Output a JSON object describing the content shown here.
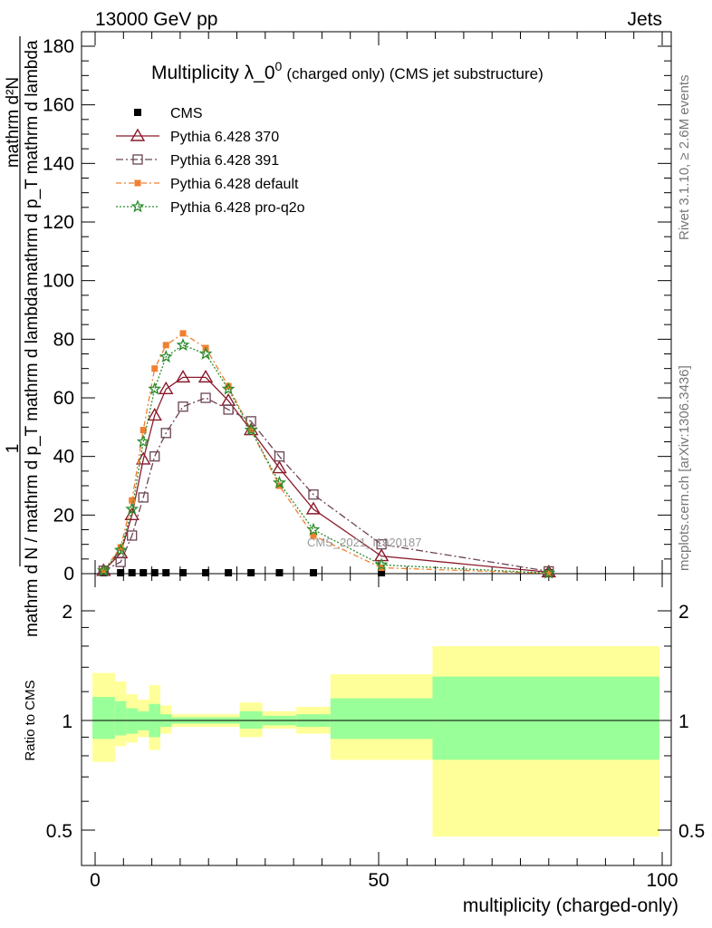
{
  "header": {
    "left": "13000 GeV pp",
    "right": "Jets"
  },
  "chart_data": {
    "type": "line",
    "title": "Multiplicity λ_0",
    "title_sup": "0",
    "title_small": "(charged only) (CMS jet substructure)",
    "xlabel": "multiplicity (charged-only)",
    "ylabel_top": "1",
    "ylabel_bottom": "mathrm d N / mathrm d p_T mathrm d lambda",
    "ylabel_numerator": "mathrm d²N",
    "ylabel_denominator": "mathrm d p_T mathrm d lambda",
    "xlim": [
      -2,
      100
    ],
    "ylim": [
      0,
      185
    ],
    "x_ticks": [
      0,
      50,
      100
    ],
    "y_ticks": [
      0,
      20,
      40,
      60,
      80,
      100,
      120,
      140,
      160,
      180
    ],
    "legend_position": "top-left",
    "grid": false,
    "series": [
      {
        "name": "CMS",
        "color": "#000000",
        "marker": "square-filled",
        "x": [
          1.5,
          4.5,
          6.5,
          8.5,
          10.5,
          12.5,
          15.5,
          19.5,
          23.5,
          27.5,
          32.5,
          38.5,
          50.5,
          80
        ],
        "y": [
          0.1,
          0.2,
          0.2,
          0.2,
          0.2,
          0.2,
          0.2,
          0.2,
          0.2,
          0.2,
          0.2,
          0.2,
          0.2,
          0.1
        ]
      },
      {
        "name": "Pythia 6.428 370",
        "color": "#8b1a2b",
        "marker": "triangle-open",
        "x": [
          1.5,
          4.5,
          6.5,
          8.5,
          10.5,
          12.5,
          15.5,
          19.5,
          23.5,
          27.5,
          32.5,
          38.5,
          50.5,
          80
        ],
        "y": [
          1,
          7,
          20,
          39,
          54,
          63,
          67,
          67,
          59,
          49,
          36,
          22,
          6,
          0.5
        ]
      },
      {
        "name": "Pythia 6.428 391",
        "color": "#6b4453",
        "marker": "square-open",
        "x": [
          1.5,
          4.5,
          6.5,
          8.5,
          10.5,
          12.5,
          15.5,
          19.5,
          23.5,
          27.5,
          32.5,
          38.5,
          50.5,
          80
        ],
        "y": [
          1,
          4,
          13,
          26,
          40,
          48,
          57,
          60,
          56,
          52,
          40,
          27,
          10,
          0.8
        ]
      },
      {
        "name": "Pythia 6.428 default",
        "color": "#f08030",
        "marker": "square-filled",
        "x": [
          1.5,
          4.5,
          6.5,
          8.5,
          10.5,
          12.5,
          15.5,
          19.5,
          23.5,
          27.5,
          32.5,
          38.5,
          50.5,
          80
        ],
        "y": [
          1,
          9,
          25,
          49,
          70,
          78,
          82,
          77,
          64,
          49,
          30,
          13,
          2,
          0.1
        ]
      },
      {
        "name": "Pythia 6.428 pro-q2o",
        "color": "#2a8a2a",
        "marker": "star-open",
        "x": [
          1.5,
          4.5,
          6.5,
          8.5,
          10.5,
          12.5,
          15.5,
          19.5,
          23.5,
          27.5,
          32.5,
          38.5,
          50.5,
          80
        ],
        "y": [
          1,
          8,
          22,
          45,
          63,
          74,
          78,
          75,
          63,
          49,
          31,
          15,
          3,
          0.2
        ]
      }
    ],
    "ratio": {
      "ylabel": "Ratio to CMS",
      "ylim": [
        0.4,
        2.35
      ],
      "y_ticks": [
        0.5,
        1,
        2
      ],
      "y_tick_labels": [
        "0.5",
        "1",
        "2"
      ],
      "band_colors": {
        "outer": "#ffff99",
        "inner": "#99ff99"
      },
      "bins": [
        {
          "lo": -0.5,
          "hi": 3.5,
          "outer": [
            0.77,
            1.35
          ],
          "inner": [
            0.89,
            1.16
          ]
        },
        {
          "lo": 3.5,
          "hi": 5.5,
          "outer": [
            0.85,
            1.28
          ],
          "inner": [
            0.91,
            1.13
          ]
        },
        {
          "lo": 5.5,
          "hi": 7.5,
          "outer": [
            0.87,
            1.18
          ],
          "inner": [
            0.92,
            1.08
          ]
        },
        {
          "lo": 7.5,
          "hi": 9.5,
          "outer": [
            0.9,
            1.14
          ],
          "inner": [
            0.94,
            1.06
          ]
        },
        {
          "lo": 9.5,
          "hi": 11.5,
          "outer": [
            0.83,
            1.25
          ],
          "inner": [
            0.9,
            1.11
          ]
        },
        {
          "lo": 11.5,
          "hi": 13.5,
          "outer": [
            0.92,
            1.1
          ],
          "inner": [
            0.96,
            1.04
          ]
        },
        {
          "lo": 13.5,
          "hi": 25.5,
          "outer": [
            0.96,
            1.04
          ],
          "inner": [
            0.98,
            1.02
          ]
        },
        {
          "lo": 25.5,
          "hi": 29.5,
          "outer": [
            0.9,
            1.12
          ],
          "inner": [
            0.95,
            1.06
          ]
        },
        {
          "lo": 29.5,
          "hi": 35.5,
          "outer": [
            0.95,
            1.06
          ],
          "inner": [
            0.97,
            1.03
          ]
        },
        {
          "lo": 35.5,
          "hi": 41.5,
          "outer": [
            0.92,
            1.09
          ],
          "inner": [
            0.96,
            1.04
          ]
        },
        {
          "lo": 41.5,
          "hi": 59.5,
          "outer": [
            0.78,
            1.34
          ],
          "inner": [
            0.89,
            1.15
          ]
        },
        {
          "lo": 59.5,
          "hi": 99.5,
          "outer": [
            0.48,
            1.6
          ],
          "inner": [
            0.78,
            1.32
          ]
        }
      ]
    }
  },
  "side_labels": {
    "rivet": "Rivet 3.1.10, ≥ 2.6M events",
    "mcplots": "mcplots.cern.ch [arXiv:1306.3436]"
  },
  "watermark": "CMS_2021_I1920187"
}
